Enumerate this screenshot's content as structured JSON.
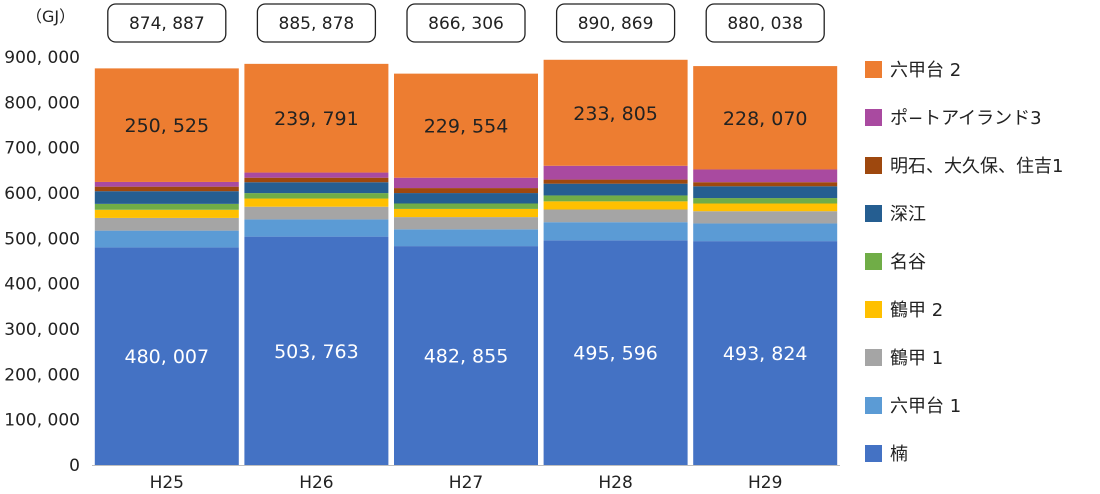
{
  "chart_data": {
    "type": "bar",
    "stacked": true,
    "unit": "（GJ）",
    "ylim": [
      0,
      900000
    ],
    "yticks": [
      "900, 000",
      "800, 000",
      "700, 000",
      "600, 000",
      "500, 000",
      "400, 000",
      "300, 000",
      "200, 000",
      "100, 000",
      "0"
    ],
    "ytick_values": [
      900000,
      800000,
      700000,
      600000,
      500000,
      400000,
      300000,
      200000,
      100000,
      0
    ],
    "categories": [
      "H25",
      "H26",
      "H27",
      "H28",
      "H29"
    ],
    "totals": [
      "874, 887",
      "885, 878",
      "866, 306",
      "890, 869",
      "880, 038"
    ],
    "grid": false,
    "legend_position": "right",
    "series": [
      {
        "name": "楠",
        "color": "#4472C4",
        "values": [
          480007,
          503763,
          482855,
          495596,
          493824
        ],
        "labels": [
          "480, 007",
          "503, 763",
          "482, 855",
          "495, 596",
          "493, 824"
        ],
        "label_color": "#ffffff"
      },
      {
        "name": "六甲台 1",
        "color": "#5B9BD5",
        "values": [
          37000,
          38000,
          37000,
          40000,
          39000
        ]
      },
      {
        "name": "鶴甲 1",
        "color": "#A5A5A5",
        "values": [
          28000,
          28000,
          27000,
          28000,
          27000
        ]
      },
      {
        "name": "鶴甲 2",
        "color": "#FFC000",
        "values": [
          18000,
          18000,
          18000,
          18000,
          17000
        ]
      },
      {
        "name": "名谷",
        "color": "#70AD47",
        "values": [
          13000,
          12000,
          12000,
          13000,
          12000
        ]
      },
      {
        "name": "深江",
        "color": "#255E91",
        "values": [
          28000,
          24000,
          23000,
          26000,
          26000
        ]
      },
      {
        "name": "明石、大久保、住吉1",
        "color": "#9E480E",
        "values": [
          10000,
          10000,
          11000,
          9000,
          9000
        ]
      },
      {
        "name": "ポ−トアイランド3",
        "color": "#A94AA0",
        "values": [
          10355,
          11324,
          22897,
          30468,
          28074
        ]
      },
      {
        "name": "六甲台 2",
        "color": "#ED7D31",
        "values": [
          250525,
          239791,
          229554,
          233805,
          228070
        ],
        "labels": [
          "250, 525",
          "239, 791",
          "229, 554",
          "233, 805",
          "228, 070"
        ],
        "label_color": "#222222"
      }
    ],
    "legend_order": [
      "六甲台 2",
      "ポ−トアイランド3",
      "明石、大久保、住吉1",
      "深江",
      "名谷",
      "鶴甲 2",
      "鶴甲 1",
      "六甲台 1",
      "楠"
    ]
  }
}
